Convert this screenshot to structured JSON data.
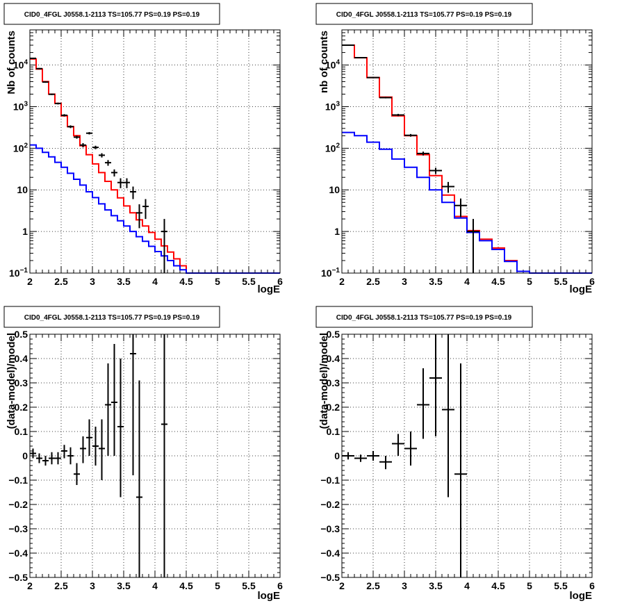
{
  "chart_data": [
    {
      "type": "step-histogram",
      "title": "CID0_4FGL J0558.1-2113 TS=105.77 PS=0.19 PS=0.19",
      "xlabel": "logE",
      "ylabel": "Nb of counts",
      "yscale": "log",
      "xlim": [
        2,
        6
      ],
      "ylim": [
        0.1,
        70000
      ],
      "grid": true,
      "xticks": [
        "2",
        "2.5",
        "3",
        "3.5",
        "4",
        "4.5",
        "5",
        "5.5",
        "6"
      ],
      "yticks": [
        {
          "value": 0.1,
          "mant": "10",
          "exp": "−1"
        },
        {
          "value": 1,
          "label": "1"
        },
        {
          "value": 10,
          "label": "10"
        },
        {
          "value": 100,
          "mant": "10",
          "exp": "2"
        },
        {
          "value": 1000,
          "mant": "10",
          "exp": "3"
        },
        {
          "value": 10000,
          "mant": "10",
          "exp": "4"
        }
      ],
      "bin_edges": [
        2.0,
        2.1,
        2.2,
        2.3,
        2.4,
        2.5,
        2.6,
        2.7,
        2.8,
        2.9,
        3.0,
        3.1,
        3.2,
        3.3,
        3.4,
        3.5,
        3.6,
        3.7,
        3.8,
        3.9,
        4.0,
        4.1,
        4.2,
        4.3,
        4.4,
        4.5,
        4.6,
        4.7,
        4.8,
        4.9,
        5.0,
        5.1,
        5.2,
        5.3,
        5.4,
        5.5,
        5.6,
        5.7,
        5.8,
        5.9,
        6.0
      ],
      "series": [
        {
          "color": "#ff0000",
          "values": [
            14000,
            8000,
            4000,
            2000,
            1200,
            600,
            330,
            200,
            115,
            70,
            42,
            26,
            16,
            10,
            6.4,
            4.1,
            2.8,
            1.9,
            1.35,
            0.95,
            0.65,
            0.45,
            0.32,
            0.22,
            0.15,
            0.1,
            0.1,
            0.1,
            0.1,
            0.1,
            0.1,
            0.1,
            0.1,
            0.1,
            0.1,
            0.1,
            0.1,
            0.1,
            0.1,
            0.1
          ]
        },
        {
          "color": "#0000ff",
          "values": [
            120,
            100,
            80,
            62,
            46,
            35,
            25,
            18,
            13,
            9,
            6.5,
            4.6,
            3.3,
            2.4,
            1.8,
            1.35,
            1.0,
            0.75,
            0.58,
            0.44,
            0.33,
            0.26,
            0.2,
            0.15,
            0.12,
            0.1,
            0.1,
            0.1,
            0.1,
            0.1,
            0.1,
            0.1,
            0.1,
            0.1,
            0.1,
            0.1,
            0.1,
            0.1,
            0.1,
            0.1
          ]
        }
      ],
      "points": [
        {
          "x": 2.05,
          "y": 14500,
          "xerr": 0.05,
          "lo": 14000,
          "hi": 15000
        },
        {
          "x": 2.15,
          "y": 8200,
          "xerr": 0.05,
          "lo": 7900,
          "hi": 8500
        },
        {
          "x": 2.25,
          "y": 3900,
          "xerr": 0.05,
          "lo": 3750,
          "hi": 4050
        },
        {
          "x": 2.35,
          "y": 1980,
          "xerr": 0.05,
          "lo": 1900,
          "hi": 2060
        },
        {
          "x": 2.45,
          "y": 1190,
          "xerr": 0.05,
          "lo": 1130,
          "hi": 1250
        },
        {
          "x": 2.55,
          "y": 620,
          "xerr": 0.05,
          "lo": 580,
          "hi": 660
        },
        {
          "x": 2.65,
          "y": 330,
          "xerr": 0.05,
          "lo": 305,
          "hi": 355
        },
        {
          "x": 2.75,
          "y": 185,
          "xerr": 0.05,
          "lo": 170,
          "hi": 200
        },
        {
          "x": 2.85,
          "y": 119,
          "xerr": 0.05,
          "lo": 105,
          "hi": 133
        },
        {
          "x": 2.95,
          "y": 230,
          "xerr": 0.05,
          "lo": 215,
          "hi": 245
        },
        {
          "x": 3.05,
          "y": 105,
          "xerr": 0.05,
          "lo": 95,
          "hi": 115
        },
        {
          "x": 3.15,
          "y": 68,
          "xerr": 0.05,
          "lo": 60,
          "hi": 76
        },
        {
          "x": 3.25,
          "y": 45,
          "xerr": 0.05,
          "lo": 38,
          "hi": 52
        },
        {
          "x": 3.35,
          "y": 26,
          "xerr": 0.05,
          "lo": 21,
          "hi": 31
        },
        {
          "x": 3.45,
          "y": 15,
          "xerr": 0.05,
          "lo": 11,
          "hi": 19
        },
        {
          "x": 3.55,
          "y": 15,
          "xerr": 0.05,
          "lo": 11,
          "hi": 19
        },
        {
          "x": 3.65,
          "y": 9,
          "xerr": 0.05,
          "lo": 6,
          "hi": 12
        },
        {
          "x": 3.75,
          "y": 2.8,
          "xerr": 0.05,
          "lo": 1.2,
          "hi": 4.5
        },
        {
          "x": 3.85,
          "y": 4,
          "xerr": 0.05,
          "lo": 2,
          "hi": 6
        },
        {
          "x": 4.15,
          "y": 1,
          "xerr": 0.05,
          "lo": 0.1,
          "hi": 2
        }
      ]
    },
    {
      "type": "step-histogram",
      "title": "CID0_4FGL J0558.1-2113 TS=105.77 PS=0.19 PS=0.19",
      "xlabel": "logE",
      "ylabel": "nb of counts",
      "yscale": "log",
      "xlim": [
        2,
        6
      ],
      "ylim": [
        0.1,
        70000
      ],
      "grid": true,
      "xticks": [
        "2",
        "2.5",
        "3",
        "3.5",
        "4",
        "4.5",
        "5",
        "5.5",
        "6"
      ],
      "yticks": [
        {
          "value": 0.1,
          "mant": "10",
          "exp": "−1"
        },
        {
          "value": 1,
          "label": "1"
        },
        {
          "value": 10,
          "label": "10"
        },
        {
          "value": 100,
          "mant": "10",
          "exp": "2"
        },
        {
          "value": 1000,
          "mant": "10",
          "exp": "3"
        },
        {
          "value": 10000,
          "mant": "10",
          "exp": "4"
        }
      ],
      "bin_edges": [
        2.0,
        2.2,
        2.4,
        2.6,
        2.8,
        3.0,
        3.2,
        3.4,
        3.6,
        3.8,
        4.0,
        4.2,
        4.4,
        4.6,
        4.8,
        5.0,
        5.2,
        5.4,
        5.6,
        5.8,
        6.0
      ],
      "series": [
        {
          "color": "#ff0000",
          "values": [
            30000,
            15000,
            5000,
            1700,
            600,
            200,
            70,
            22,
            7.5,
            2.3,
            1.05,
            0.65,
            0.4,
            0.2,
            0.11,
            0.1,
            0.1,
            0.1,
            0.1,
            0.1
          ]
        },
        {
          "color": "#0000ff",
          "values": [
            240,
            200,
            140,
            95,
            55,
            35,
            20,
            10,
            5,
            2.1,
            0.95,
            0.6,
            0.37,
            0.19,
            0.11,
            0.1,
            0.1,
            0.1,
            0.1,
            0.1
          ]
        }
      ],
      "points": [
        {
          "x": 2.1,
          "y": 30000,
          "xerr": 0.1,
          "lo": 29000,
          "hi": 31000
        },
        {
          "x": 2.3,
          "y": 15000,
          "xerr": 0.1,
          "lo": 14500,
          "hi": 15500
        },
        {
          "x": 2.5,
          "y": 5000,
          "xerr": 0.1,
          "lo": 4800,
          "hi": 5200
        },
        {
          "x": 2.7,
          "y": 1650,
          "xerr": 0.1,
          "lo": 1580,
          "hi": 1720
        },
        {
          "x": 2.9,
          "y": 630,
          "xerr": 0.1,
          "lo": 590,
          "hi": 670
        },
        {
          "x": 3.1,
          "y": 205,
          "xerr": 0.1,
          "lo": 190,
          "hi": 220
        },
        {
          "x": 3.3,
          "y": 75,
          "xerr": 0.1,
          "lo": 67,
          "hi": 83
        },
        {
          "x": 3.5,
          "y": 29,
          "xerr": 0.1,
          "lo": 24,
          "hi": 34
        },
        {
          "x": 3.7,
          "y": 12,
          "xerr": 0.1,
          "lo": 8.5,
          "hi": 15.5
        },
        {
          "x": 3.9,
          "y": 4.2,
          "xerr": 0.1,
          "lo": 2.2,
          "hi": 6.2
        },
        {
          "x": 4.1,
          "y": 1,
          "xerr": 0.1,
          "lo": 0.1,
          "hi": 2
        }
      ]
    },
    {
      "type": "errorbar",
      "title": "CID0_4FGL J0558.1-2113 TS=105.77 PS=0.19 PS=0.19",
      "xlabel": "logE",
      "ylabel": "(data-model)/model",
      "xlim": [
        2,
        6
      ],
      "ylim": [
        -0.5,
        0.5
      ],
      "grid": true,
      "xticks": [
        "2",
        "2.5",
        "3",
        "3.5",
        "4",
        "4.5",
        "5",
        "5.5",
        "6"
      ],
      "yticks": [
        "−0.5",
        "−0.4",
        "−0.3",
        "−0.2",
        "−0.1",
        "0",
        "0.1",
        "0.2",
        "0.3",
        "0.4",
        "0.5"
      ],
      "points": [
        {
          "x": 2.05,
          "y": 0.01,
          "xerr": 0.05,
          "lo": -0.01,
          "hi": 0.03
        },
        {
          "x": 2.15,
          "y": -0.01,
          "xerr": 0.05,
          "lo": -0.03,
          "hi": 0.01
        },
        {
          "x": 2.25,
          "y": -0.02,
          "xerr": 0.05,
          "lo": -0.04,
          "hi": 0.0
        },
        {
          "x": 2.35,
          "y": -0.01,
          "xerr": 0.05,
          "lo": -0.035,
          "hi": 0.015
        },
        {
          "x": 2.45,
          "y": -0.01,
          "xerr": 0.05,
          "lo": -0.035,
          "hi": 0.015
        },
        {
          "x": 2.55,
          "y": 0.02,
          "xerr": 0.05,
          "lo": -0.01,
          "hi": 0.045
        },
        {
          "x": 2.65,
          "y": 0.0,
          "xerr": 0.05,
          "lo": -0.035,
          "hi": 0.035
        },
        {
          "x": 2.75,
          "y": -0.075,
          "xerr": 0.05,
          "lo": -0.12,
          "hi": -0.03
        },
        {
          "x": 2.85,
          "y": 0.03,
          "xerr": 0.05,
          "lo": -0.03,
          "hi": 0.08
        },
        {
          "x": 2.95,
          "y": 0.075,
          "xerr": 0.05,
          "lo": 0.0,
          "hi": 0.15
        },
        {
          "x": 3.05,
          "y": 0.04,
          "xerr": 0.05,
          "lo": -0.04,
          "hi": 0.12
        },
        {
          "x": 3.15,
          "y": 0.03,
          "xerr": 0.05,
          "lo": -0.1,
          "hi": 0.15
        },
        {
          "x": 3.25,
          "y": 0.21,
          "xerr": 0.05,
          "lo": 0.0,
          "hi": 0.38
        },
        {
          "x": 3.35,
          "y": 0.22,
          "xerr": 0.05,
          "lo": 0.0,
          "hi": 0.46
        },
        {
          "x": 3.45,
          "y": 0.12,
          "xerr": 0.05,
          "lo": -0.17,
          "hi": 0.4
        },
        {
          "x": 3.65,
          "y": 0.42,
          "xerr": 0.05,
          "lo": -0.08,
          "hi": 0.5
        },
        {
          "x": 3.75,
          "y": -0.17,
          "xerr": 0.05,
          "lo": -0.5,
          "hi": 0.31
        },
        {
          "x": 4.15,
          "y": 0.13,
          "xerr": 0.05,
          "lo": -0.5,
          "hi": 0.5
        }
      ]
    },
    {
      "type": "errorbar",
      "title": "CID0_4FGL J0558.1-2113 TS=105.77 PS=0.19 PS=0.19",
      "xlabel": "logE",
      "ylabel": "(data-model)/model",
      "xlim": [
        2,
        6
      ],
      "ylim": [
        -0.5,
        0.5
      ],
      "grid": true,
      "xticks": [
        "2",
        "2.5",
        "3",
        "3.5",
        "4",
        "4.5",
        "5",
        "5.5",
        "6"
      ],
      "yticks": [
        "−0.5",
        "−0.4",
        "−0.3",
        "−0.2",
        "−0.1",
        "0",
        "0.1",
        "0.2",
        "0.3",
        "0.4",
        "0.5"
      ],
      "points": [
        {
          "x": 2.1,
          "y": 0.0,
          "xerr": 0.1,
          "lo": -0.015,
          "hi": 0.015
        },
        {
          "x": 2.3,
          "y": -0.01,
          "xerr": 0.1,
          "lo": -0.025,
          "hi": 0.005
        },
        {
          "x": 2.5,
          "y": 0.0,
          "xerr": 0.1,
          "lo": -0.02,
          "hi": 0.02
        },
        {
          "x": 2.7,
          "y": -0.025,
          "xerr": 0.1,
          "lo": -0.055,
          "hi": 0.0
        },
        {
          "x": 2.9,
          "y": 0.05,
          "xerr": 0.1,
          "lo": 0.0,
          "hi": 0.09
        },
        {
          "x": 3.1,
          "y": 0.03,
          "xerr": 0.1,
          "lo": -0.04,
          "hi": 0.1
        },
        {
          "x": 3.3,
          "y": 0.21,
          "xerr": 0.1,
          "lo": 0.07,
          "hi": 0.36
        },
        {
          "x": 3.5,
          "y": 0.32,
          "xerr": 0.1,
          "lo": 0.08,
          "hi": 0.5
        },
        {
          "x": 3.7,
          "y": 0.19,
          "xerr": 0.1,
          "lo": -0.17,
          "hi": 0.5
        },
        {
          "x": 3.9,
          "y": -0.075,
          "xerr": 0.1,
          "lo": -0.5,
          "hi": 0.38
        }
      ]
    }
  ]
}
